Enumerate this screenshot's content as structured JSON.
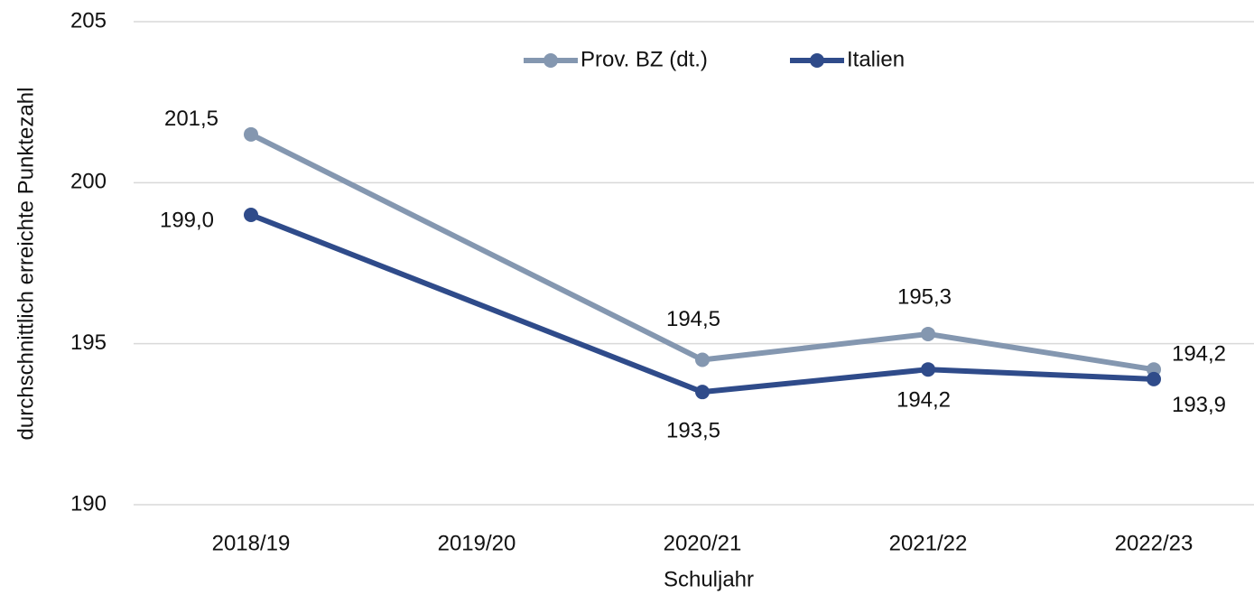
{
  "chart_data": {
    "type": "line",
    "x_label": "Schuljahr",
    "y_label": "durchschnittlich erreichte Punktezahl",
    "categories": [
      "2018/19",
      "2019/20",
      "2020/21",
      "2021/22",
      "2022/23"
    ],
    "series": [
      {
        "name": "Prov. BZ (dt.)",
        "color": "#8497b0",
        "values": [
          201.5,
          null,
          194.5,
          195.3,
          194.2
        ],
        "value_labels": [
          "201,5",
          null,
          "194,5",
          "195,3",
          "194,2"
        ]
      },
      {
        "name": "Italien",
        "color": "#2f4b8a",
        "values": [
          199.0,
          null,
          193.5,
          194.2,
          193.9
        ],
        "value_labels": [
          "199,0",
          null,
          "193,5",
          "194,2",
          "193,9"
        ]
      }
    ],
    "ylim": [
      190,
      205
    ],
    "yticks": [
      190,
      195,
      200,
      205
    ],
    "grid": true,
    "legend": "top"
  }
}
